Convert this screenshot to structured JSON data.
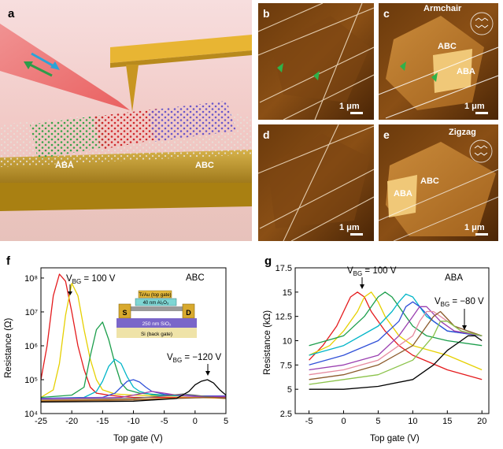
{
  "panels": {
    "a": {
      "label": "a",
      "aba": "ABA",
      "abc": "ABC"
    },
    "b": {
      "label": "b",
      "scale": "1 μm"
    },
    "c": {
      "label": "c",
      "orientation": "Armchair",
      "abc": "ABC",
      "aba": "ABA",
      "scale": "1 μm"
    },
    "d": {
      "label": "d",
      "scale": "1 μm"
    },
    "e": {
      "label": "e",
      "orientation": "Zigzag",
      "abc": "ABC",
      "aba": "ABA",
      "scale": "1 μm"
    },
    "f": {
      "label": "f"
    },
    "g": {
      "label": "g"
    }
  },
  "inset": {
    "top_gate": "Ti/Au (top gate)",
    "ald": "40 nm Al₂O₃",
    "source": "S",
    "drain": "D",
    "oxide": "250 nm SiO₂",
    "back_gate": "Si (back gate)"
  },
  "chart_data": [
    {
      "type": "line",
      "title": "ABC",
      "xlabel": "Top gate (V)",
      "ylabel": "Resistance (Ω)",
      "yscale": "log",
      "xlim": [
        -25,
        5
      ],
      "ylim": [
        10000,
        200000000
      ],
      "xticks": [
        -25,
        -20,
        -15,
        -10,
        -5,
        0,
        5
      ],
      "yticks": [
        10000,
        100000,
        1000000,
        10000000,
        100000000
      ],
      "yticklabels": [
        "10⁴",
        "10⁵",
        "10⁶",
        "10⁷",
        "10⁸"
      ],
      "annot1": " = 100 V",
      "annot2": " = −120 V",
      "series": [
        {
          "color": "#e41a1c",
          "x": [
            -25,
            -24,
            -23,
            -22,
            -21,
            -20,
            -19,
            -18,
            -17,
            -16,
            -14,
            -12,
            -10,
            -5,
            0,
            5
          ],
          "y": [
            100000,
            1000000,
            30000000,
            130000000,
            80000000,
            10000000,
            1000000,
            200000,
            60000,
            40000,
            35000,
            32000,
            30000,
            30000,
            30000,
            30000
          ]
        },
        {
          "color": "#e6d000",
          "x": [
            -25,
            -23,
            -22,
            -21,
            -20,
            -19,
            -18,
            -17,
            -16,
            -15,
            -13,
            -10,
            -5,
            0,
            5
          ],
          "y": [
            30000,
            50000,
            300000,
            8000000,
            70000000,
            30000000,
            3000000,
            400000,
            100000,
            50000,
            38000,
            35000,
            33000,
            33000,
            33000
          ]
        },
        {
          "color": "#1b9e4b",
          "x": [
            -25,
            -20,
            -18,
            -17,
            -16,
            -15,
            -14,
            -13,
            -12,
            -11,
            -9,
            -5,
            0,
            5
          ],
          "y": [
            30000,
            35000,
            60000,
            500000,
            3000000,
            5000000,
            1500000,
            300000,
            80000,
            50000,
            40000,
            35000,
            33000,
            33000
          ]
        },
        {
          "color": "#00b5c8",
          "x": [
            -25,
            -18,
            -16,
            -15,
            -14,
            -13,
            -12,
            -11,
            -10,
            -9,
            -7,
            -5,
            0,
            5
          ],
          "y": [
            28000,
            30000,
            45000,
            90000,
            250000,
            400000,
            300000,
            120000,
            60000,
            45000,
            36000,
            34000,
            33000,
            33000
          ]
        },
        {
          "color": "#3050d8",
          "x": [
            -25,
            -15,
            -13,
            -12,
            -11,
            -10,
            -9,
            -8,
            -7,
            -5,
            0,
            5
          ],
          "y": [
            28000,
            30000,
            40000,
            60000,
            90000,
            100000,
            85000,
            60000,
            45000,
            37000,
            33000,
            33000
          ]
        },
        {
          "color": "#9a3fb0",
          "x": [
            -25,
            -12,
            -9,
            -7,
            -5,
            -3,
            0,
            5
          ],
          "y": [
            27000,
            30000,
            38000,
            45000,
            40000,
            35000,
            32000,
            32000
          ]
        },
        {
          "color": "#6f6f6f",
          "x": [
            -25,
            -10,
            -5,
            -2,
            0,
            3,
            5
          ],
          "y": [
            25000,
            28000,
            33000,
            38000,
            35000,
            30000,
            29000
          ]
        },
        {
          "color": "#f29a2e",
          "x": [
            -25,
            -10,
            -5,
            0,
            5
          ],
          "y": [
            24000,
            26000,
            28000,
            30000,
            28000
          ]
        },
        {
          "color": "#8b5a2b",
          "x": [
            -25,
            -10,
            -5,
            0,
            3,
            5
          ],
          "y": [
            23000,
            25000,
            27000,
            29000,
            30000,
            28000
          ]
        },
        {
          "color": "#000000",
          "x": [
            -25,
            -10,
            -3,
            -1,
            0,
            1,
            2,
            3,
            4,
            5
          ],
          "y": [
            22000,
            23000,
            28000,
            45000,
            70000,
            90000,
            100000,
            80000,
            50000,
            35000
          ]
        }
      ]
    },
    {
      "type": "line",
      "title": "ABA",
      "xlabel": "Top gate (V)",
      "ylabel": "Resistance (kΩ)",
      "xlim": [
        -7,
        21
      ],
      "ylim": [
        2.5,
        17.5
      ],
      "xticks": [
        -5,
        0,
        5,
        10,
        15,
        20
      ],
      "yticks": [
        2.5,
        5,
        7.5,
        10,
        12.5,
        15,
        17.5
      ],
      "annot1": " = 100 V",
      "annot2": " = −80 V",
      "series": [
        {
          "color": "#e41a1c",
          "x": [
            -5,
            -3,
            -1,
            0,
            1,
            2,
            3,
            4,
            6,
            8,
            10,
            15,
            20
          ],
          "y": [
            8,
            9.5,
            11.5,
            13,
            14.5,
            15,
            14.5,
            13,
            11,
            9.5,
            8.5,
            7,
            6
          ]
        },
        {
          "color": "#e6d000",
          "x": [
            -5,
            -2,
            0,
            2,
            3,
            4,
            5,
            6,
            8,
            10,
            15,
            20
          ],
          "y": [
            8.5,
            9.5,
            11,
            13,
            14.5,
            15,
            14,
            12.5,
            10.5,
            9.5,
            8.5,
            7
          ]
        },
        {
          "color": "#1b9e4b",
          "x": [
            -5,
            0,
            3,
            5,
            6,
            7,
            8,
            10,
            12,
            15,
            20
          ],
          "y": [
            9.5,
            10.5,
            12.5,
            14.5,
            15,
            14.5,
            13.5,
            11.5,
            10.5,
            10,
            9.5
          ]
        },
        {
          "color": "#00b5c8",
          "x": [
            -5,
            0,
            5,
            7,
            8,
            9,
            10,
            12,
            15,
            20
          ],
          "y": [
            8.5,
            9.5,
            11.5,
            13,
            14,
            14.8,
            14.5,
            12.5,
            11,
            10.5
          ]
        },
        {
          "color": "#3050d8",
          "x": [
            -5,
            0,
            5,
            8,
            9,
            10,
            11,
            13,
            15,
            20
          ],
          "y": [
            7.5,
            8.5,
            10,
            12,
            13.5,
            14,
            13.5,
            12,
            11,
            10.5
          ]
        },
        {
          "color": "#9a3fb0",
          "x": [
            -5,
            0,
            5,
            8,
            10,
            11,
            12,
            14,
            16,
            20
          ],
          "y": [
            7,
            7.5,
            8.5,
            10.5,
            12.5,
            13.5,
            13.5,
            12,
            11,
            10.5
          ]
        },
        {
          "color": "#e68ba0",
          "x": [
            -5,
            0,
            5,
            10,
            11,
            12,
            13,
            15,
            17,
            20
          ],
          "y": [
            6.5,
            7,
            8,
            10.5,
            12,
            13,
            13,
            12,
            11,
            10.5
          ]
        },
        {
          "color": "#8b5a2b",
          "x": [
            -5,
            0,
            5,
            10,
            12,
            13,
            14,
            16,
            18,
            20
          ],
          "y": [
            6,
            6.5,
            7.5,
            9.5,
            11.5,
            12.5,
            13,
            11.5,
            11,
            10.5
          ]
        },
        {
          "color": "#8bc34a",
          "x": [
            -5,
            0,
            5,
            10,
            13,
            14,
            15,
            17,
            20
          ],
          "y": [
            5.5,
            6,
            6.5,
            8,
            10.5,
            12,
            12,
            11,
            10.5
          ]
        },
        {
          "color": "#000000",
          "x": [
            -5,
            0,
            5,
            10,
            13,
            15,
            17,
            18,
            19,
            20
          ],
          "y": [
            5,
            5,
            5.3,
            6,
            7.5,
            9,
            10,
            10.5,
            10.5,
            10
          ]
        }
      ]
    }
  ]
}
